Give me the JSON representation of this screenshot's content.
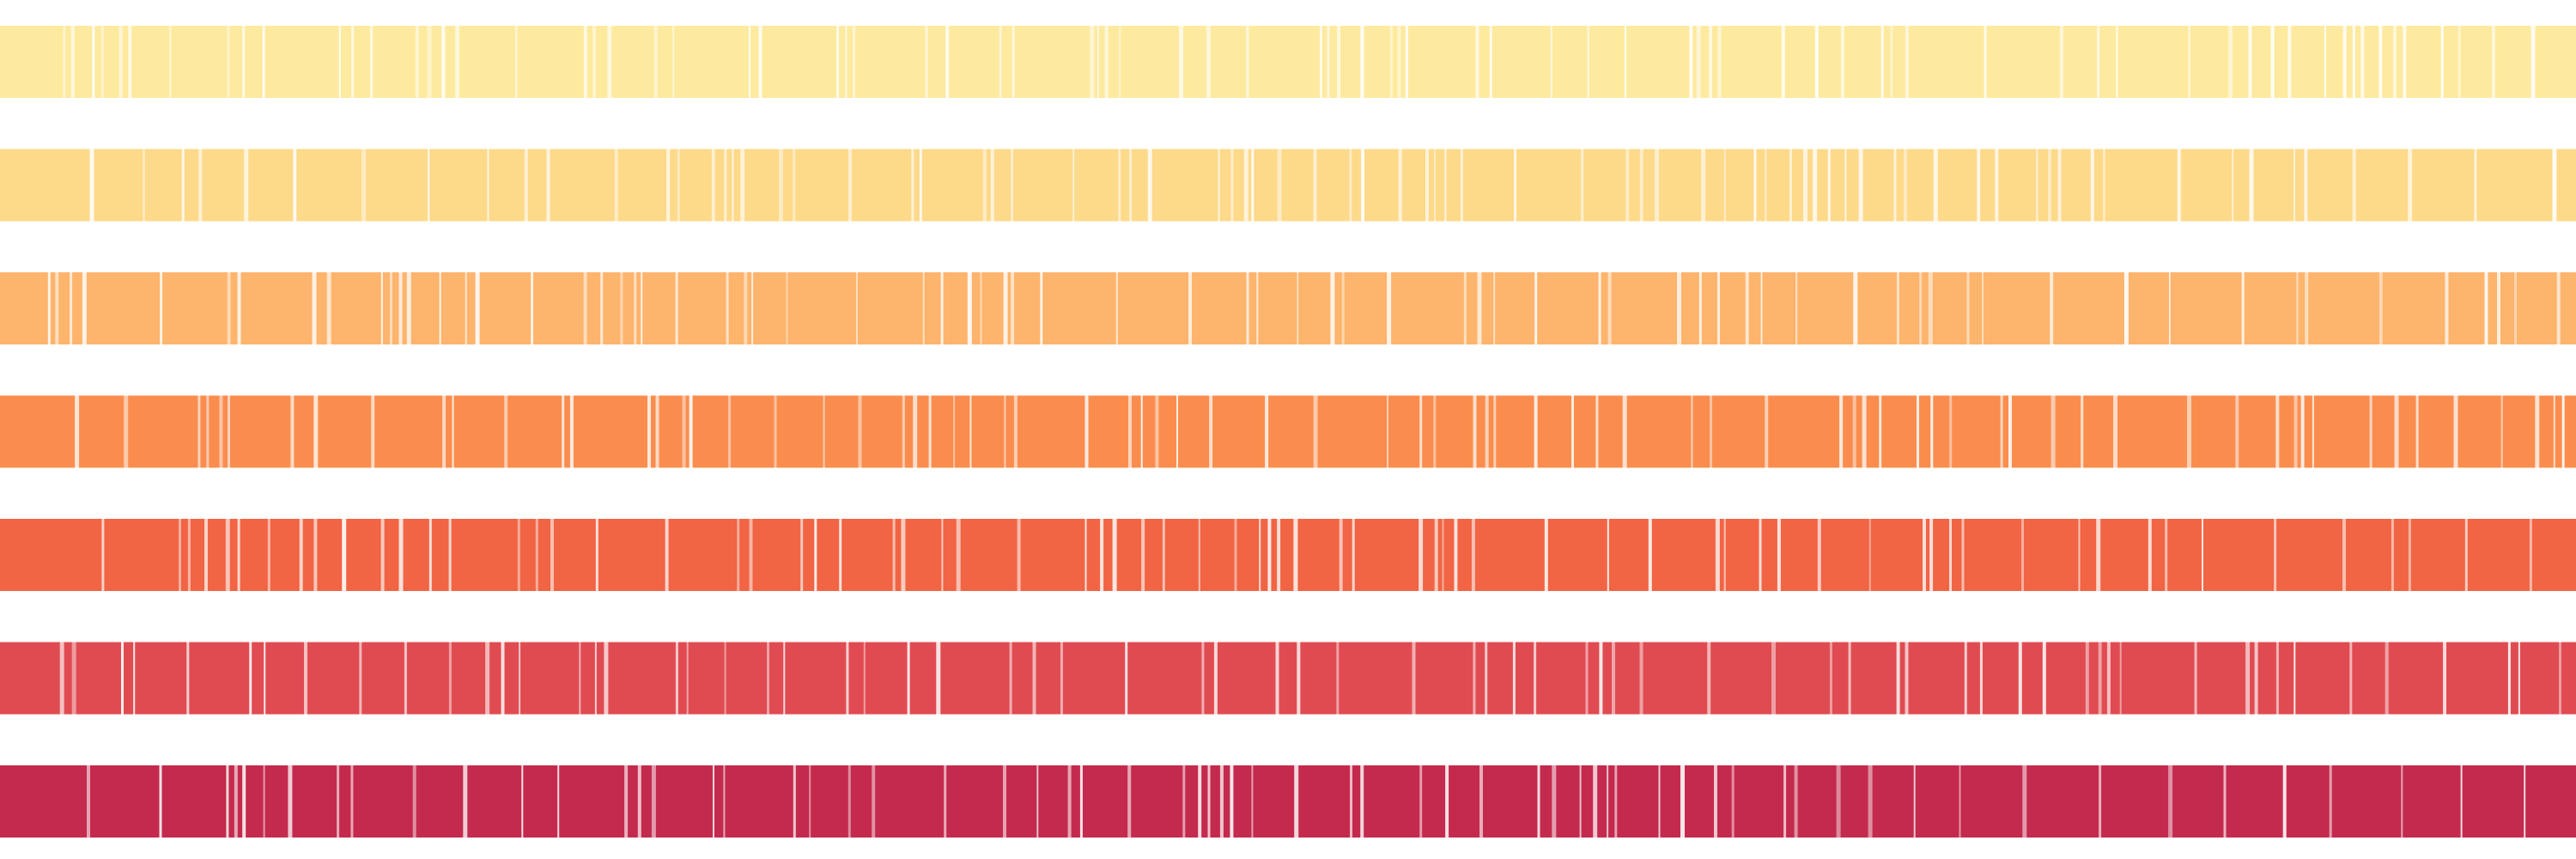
{
  "bands": [
    {
      "color": "#FDEA9F"
    },
    {
      "color": "#FDD98A"
    },
    {
      "color": "#FDB46C"
    },
    {
      "color": "#FA8D4E"
    },
    {
      "color": "#F16444"
    },
    {
      "color": "#E04B51"
    },
    {
      "color": "#C42A4D"
    }
  ],
  "stripe_color": "#FFFFFF"
}
